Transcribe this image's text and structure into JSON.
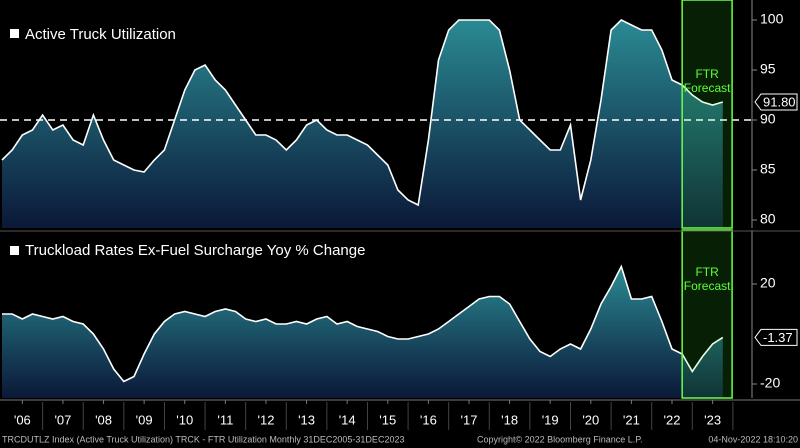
{
  "chart_data": [
    {
      "type": "area",
      "title": "Active Truck Utilization",
      "x": [
        2006,
        2006.25,
        2006.5,
        2006.75,
        2007,
        2007.25,
        2007.5,
        2007.75,
        2008,
        2008.25,
        2008.5,
        2008.75,
        2009,
        2009.25,
        2009.5,
        2009.75,
        2010,
        2010.25,
        2010.5,
        2010.75,
        2011,
        2011.25,
        2011.5,
        2011.75,
        2012,
        2012.25,
        2012.5,
        2012.75,
        2013,
        2013.25,
        2013.5,
        2013.75,
        2014,
        2014.25,
        2014.5,
        2014.75,
        2015,
        2015.25,
        2015.5,
        2015.75,
        2016,
        2016.25,
        2016.5,
        2016.75,
        2017,
        2017.25,
        2017.5,
        2017.75,
        2018,
        2018.25,
        2018.5,
        2018.75,
        2019,
        2019.25,
        2019.5,
        2019.75,
        2020,
        2020.25,
        2020.5,
        2020.75,
        2021,
        2021.25,
        2021.5,
        2021.75,
        2022,
        2022.25,
        2022.5,
        2022.75,
        2023,
        2023.25,
        2023.5,
        2023.75
      ],
      "values": [
        86,
        87,
        88.5,
        89,
        90.5,
        89,
        89.5,
        88,
        87.5,
        90.5,
        88,
        86,
        85.5,
        85,
        84.8,
        86,
        87,
        90,
        93,
        95,
        95.5,
        94,
        93,
        91.5,
        90,
        88.5,
        88.5,
        88,
        87,
        88,
        89.5,
        90,
        89,
        88.5,
        88.5,
        88,
        87.5,
        86.5,
        85.5,
        83,
        82,
        81.5,
        88,
        96,
        99,
        100,
        100,
        100,
        100,
        99,
        95,
        90,
        89,
        88,
        87,
        87,
        89.5,
        82,
        86,
        92,
        99,
        100,
        99.5,
        99,
        99,
        97,
        94,
        93.5,
        92.5,
        91.8,
        91.5,
        91.8
      ],
      "value_labels": [
        null,
        null,
        null,
        null,
        null,
        null,
        null,
        null,
        null,
        null,
        null,
        null,
        null,
        null,
        null,
        null,
        null,
        null,
        null,
        null,
        null,
        null,
        null,
        null,
        null,
        null,
        null,
        null,
        null,
        null,
        null,
        null,
        null,
        null,
        null,
        null,
        null,
        null,
        null,
        null,
        null,
        null,
        null,
        null,
        null,
        null,
        null,
        null,
        null,
        null,
        null,
        null,
        null,
        null,
        null,
        null,
        null,
        null,
        null,
        null,
        null,
        null,
        null,
        null,
        null,
        null,
        null,
        null,
        null,
        null,
        null,
        "91.80"
      ],
      "xlim": [
        2005.95,
        2024.47
      ],
      "ylim": [
        79.2,
        101.5
      ],
      "yticks": [
        80,
        85,
        90,
        95,
        100
      ],
      "reference_line": 90,
      "forecast_span": [
        2022.75,
        2023.98
      ],
      "forecast_label": "FTR Forecast",
      "color": "#2a8a93",
      "line_color": "#ffffff"
    },
    {
      "type": "area",
      "title": "Truckload Rates Ex-Fuel Surcharge Yoy % Change",
      "x": [
        2006,
        2006.25,
        2006.5,
        2006.75,
        2007,
        2007.25,
        2007.5,
        2007.75,
        2008,
        2008.25,
        2008.5,
        2008.75,
        2009,
        2009.25,
        2009.5,
        2009.75,
        2010,
        2010.25,
        2010.5,
        2010.75,
        2011,
        2011.25,
        2011.5,
        2011.75,
        2012,
        2012.25,
        2012.5,
        2012.75,
        2013,
        2013.25,
        2013.5,
        2013.75,
        2014,
        2014.25,
        2014.5,
        2014.75,
        2015,
        2015.25,
        2015.5,
        2015.75,
        2016,
        2016.25,
        2016.5,
        2016.75,
        2017,
        2017.25,
        2017.5,
        2017.75,
        2018,
        2018.25,
        2018.5,
        2018.75,
        2019,
        2019.25,
        2019.5,
        2019.75,
        2020,
        2020.25,
        2020.5,
        2020.75,
        2021,
        2021.25,
        2021.5,
        2021.75,
        2022,
        2022.25,
        2022.5,
        2022.75,
        2023,
        2023.25,
        2023.5,
        2023.75
      ],
      "values": [
        8,
        8,
        6,
        8,
        7,
        6,
        7,
        5,
        4,
        0,
        -6,
        -14,
        -19,
        -17,
        -8,
        0,
        5,
        8,
        9,
        8,
        7,
        9,
        10,
        9,
        6,
        5,
        6,
        4,
        4,
        5,
        4,
        6,
        7,
        4,
        5,
        3,
        2,
        1,
        -1,
        -2,
        -2,
        -1,
        0,
        2,
        5,
        8,
        11,
        14,
        15,
        15,
        12,
        5,
        -2,
        -7,
        -9,
        -6,
        -4,
        -6,
        2,
        12,
        19,
        27,
        14,
        14,
        15,
        5,
        -6,
        -8,
        -15,
        -9,
        -4,
        -1.37
      ],
      "value_labels": [
        null,
        null,
        null,
        null,
        null,
        null,
        null,
        null,
        null,
        null,
        null,
        null,
        null,
        null,
        null,
        null,
        null,
        null,
        null,
        null,
        null,
        null,
        null,
        null,
        null,
        null,
        null,
        null,
        null,
        null,
        null,
        null,
        null,
        null,
        null,
        null,
        null,
        null,
        null,
        null,
        null,
        null,
        null,
        null,
        null,
        null,
        null,
        null,
        null,
        null,
        null,
        null,
        null,
        null,
        null,
        null,
        null,
        null,
        null,
        null,
        null,
        null,
        null,
        null,
        null,
        null,
        null,
        null,
        null,
        null,
        null,
        "-1.37"
      ],
      "xlim": [
        2005.95,
        2024.47
      ],
      "ylim": [
        -25.6,
        39.6
      ],
      "yticks": [
        -20,
        20
      ],
      "xticks": [
        {
          "value": 2006.5,
          "label": "'06"
        },
        {
          "value": 2007.5,
          "label": "'07"
        },
        {
          "value": 2008.5,
          "label": "'08"
        },
        {
          "value": 2009.5,
          "label": "'09"
        },
        {
          "value": 2010.5,
          "label": "'10"
        },
        {
          "value": 2011.5,
          "label": "'11"
        },
        {
          "value": 2012.5,
          "label": "'12"
        },
        {
          "value": 2013.5,
          "label": "'13"
        },
        {
          "value": 2014.5,
          "label": "'14"
        },
        {
          "value": 2015.5,
          "label": "'15"
        },
        {
          "value": 2016.5,
          "label": "'16"
        },
        {
          "value": 2017.5,
          "label": "'17"
        },
        {
          "value": 2018.5,
          "label": "'18"
        },
        {
          "value": 2019.5,
          "label": "'19"
        },
        {
          "value": 2020.5,
          "label": "'20"
        },
        {
          "value": 2021.5,
          "label": "'21"
        },
        {
          "value": 2022.5,
          "label": "'22"
        },
        {
          "value": 2023.5,
          "label": "'23"
        }
      ],
      "forecast_span": [
        2022.75,
        2023.98
      ],
      "forecast_label": "FTR Forecast",
      "color": "#2a8a93",
      "line_color": "#ffffff"
    }
  ],
  "footer": {
    "source": "TRCDUTLZ Index (Active Truck Utilization) TRCK - FTR Utilization  Monthly 31DEC2005-31DEC2023",
    "copyright": "Copyright© 2022 Bloomberg Finance L.P.",
    "timestamp": "04-Nov-2022 18:10:20"
  }
}
